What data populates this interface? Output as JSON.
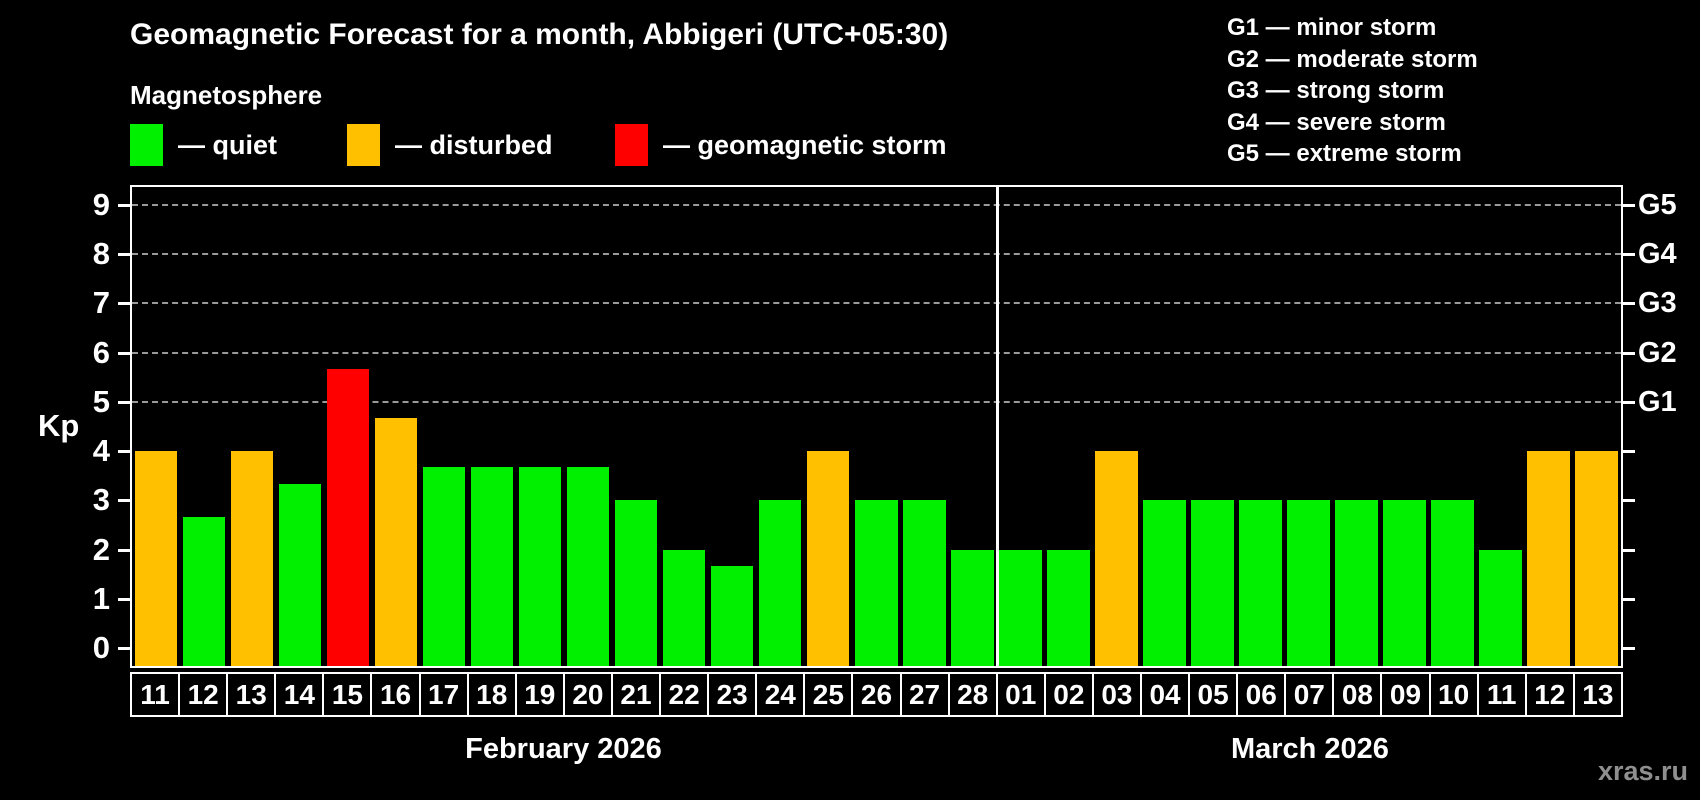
{
  "title": "Geomagnetic Forecast for a month, Abbigeri (UTC+05:30)",
  "subtitle": "Magnetosphere",
  "legend": {
    "quiet_label": "— quiet",
    "disturbed_label": "— disturbed",
    "storm_label": "— geomagnetic storm"
  },
  "g_legend": [
    "G1 — minor storm",
    "G2 — moderate storm",
    "G3 — strong storm",
    "G4 — severe storm",
    "G5 — extreme storm"
  ],
  "watermark": "xras.ru",
  "colors": {
    "quiet": "#00f000",
    "disturbed": "#ffc000",
    "storm": "#ff0000",
    "background": "#000000",
    "text": "#ffffff",
    "grid": "#9a9a9a",
    "watermark": "#8f8f8f"
  },
  "chart_data": {
    "type": "bar",
    "ylabel": "Kp",
    "ylim": [
      0,
      9
    ],
    "yticks": [
      0,
      1,
      2,
      3,
      4,
      5,
      6,
      7,
      8,
      9
    ],
    "grid_values": [
      5,
      6,
      7,
      8,
      9
    ],
    "grid_style": "dashed",
    "legend_position": "top",
    "right_axis_labels": [
      {
        "value": 5,
        "label": "G1"
      },
      {
        "value": 6,
        "label": "G2"
      },
      {
        "value": 7,
        "label": "G3"
      },
      {
        "value": 8,
        "label": "G4"
      },
      {
        "value": 9,
        "label": "G5"
      }
    ],
    "months": [
      {
        "label": "February 2026",
        "days": 18
      },
      {
        "label": "March 2026",
        "days": 13
      }
    ],
    "categories": [
      "11",
      "12",
      "13",
      "14",
      "15",
      "16",
      "17",
      "18",
      "19",
      "20",
      "21",
      "22",
      "23",
      "24",
      "25",
      "26",
      "27",
      "28",
      "01",
      "02",
      "03",
      "04",
      "05",
      "06",
      "07",
      "08",
      "09",
      "10",
      "11",
      "12",
      "13"
    ],
    "values": [
      4,
      2.67,
      4,
      3.33,
      5.67,
      4.67,
      3.67,
      3.67,
      3.67,
      3.67,
      3,
      2,
      1.67,
      3,
      4,
      3,
      3,
      2,
      2,
      2,
      4,
      3,
      3,
      3,
      3,
      3,
      3,
      3,
      2,
      4,
      4
    ],
    "statuses": [
      "disturbed",
      "quiet",
      "disturbed",
      "quiet",
      "storm",
      "disturbed",
      "quiet",
      "quiet",
      "quiet",
      "quiet",
      "quiet",
      "quiet",
      "quiet",
      "quiet",
      "disturbed",
      "quiet",
      "quiet",
      "quiet",
      "quiet",
      "quiet",
      "disturbed",
      "quiet",
      "quiet",
      "quiet",
      "quiet",
      "quiet",
      "quiet",
      "quiet",
      "quiet",
      "disturbed",
      "disturbed"
    ]
  }
}
